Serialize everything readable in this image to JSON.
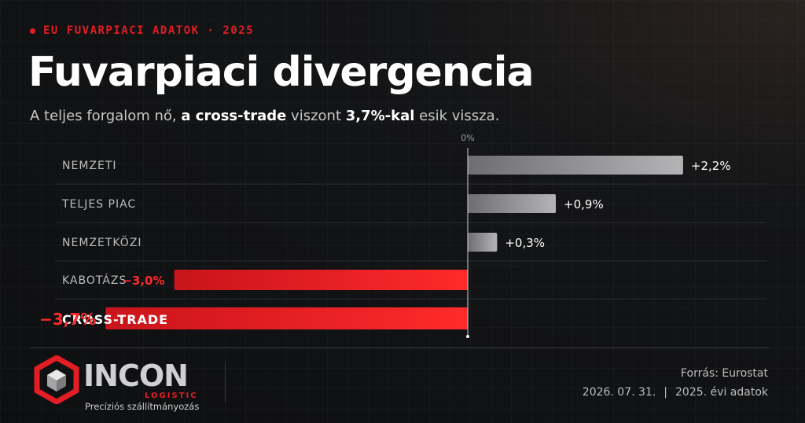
{
  "header": {
    "kicker": "EU FUVARPIACI ADATOK · 2025",
    "title": "Fuvarpiaci divergencia",
    "subtitle_part1": "A teljes forgalom nő, ",
    "subtitle_bold1": "a cross-trade",
    "subtitle_part2": " viszont ",
    "subtitle_bold2": "3,7%-kal",
    "subtitle_part3": " esik vissza."
  },
  "chart_data": {
    "type": "bar",
    "orientation": "horizontal",
    "zero_label": "0%",
    "categories": [
      "NEMZETI",
      "TELJES PIAC",
      "NEMZETKÖZI",
      "KABOTÁZS",
      "CROSS-TRADE"
    ],
    "values": [
      2.2,
      0.9,
      0.3,
      -3.0,
      -3.7
    ],
    "value_labels": [
      "+2,2%",
      "+0,9%",
      "+0,3%",
      "−3,0%",
      "−3,7%"
    ],
    "highlighted": "CROSS-TRADE",
    "colors": {
      "positive": "#9a9a9c",
      "negative": "#e21d24"
    }
  },
  "brand": {
    "name": "INCON",
    "sub": "LOGISTIC",
    "tagline": "Precíziós szállítmányozás",
    "accent": "#e21d24"
  },
  "footer": {
    "source": "Forrás: Eurostat",
    "date": "2026. 07. 31.",
    "separator": "|",
    "period": "2025. évi adatok"
  }
}
